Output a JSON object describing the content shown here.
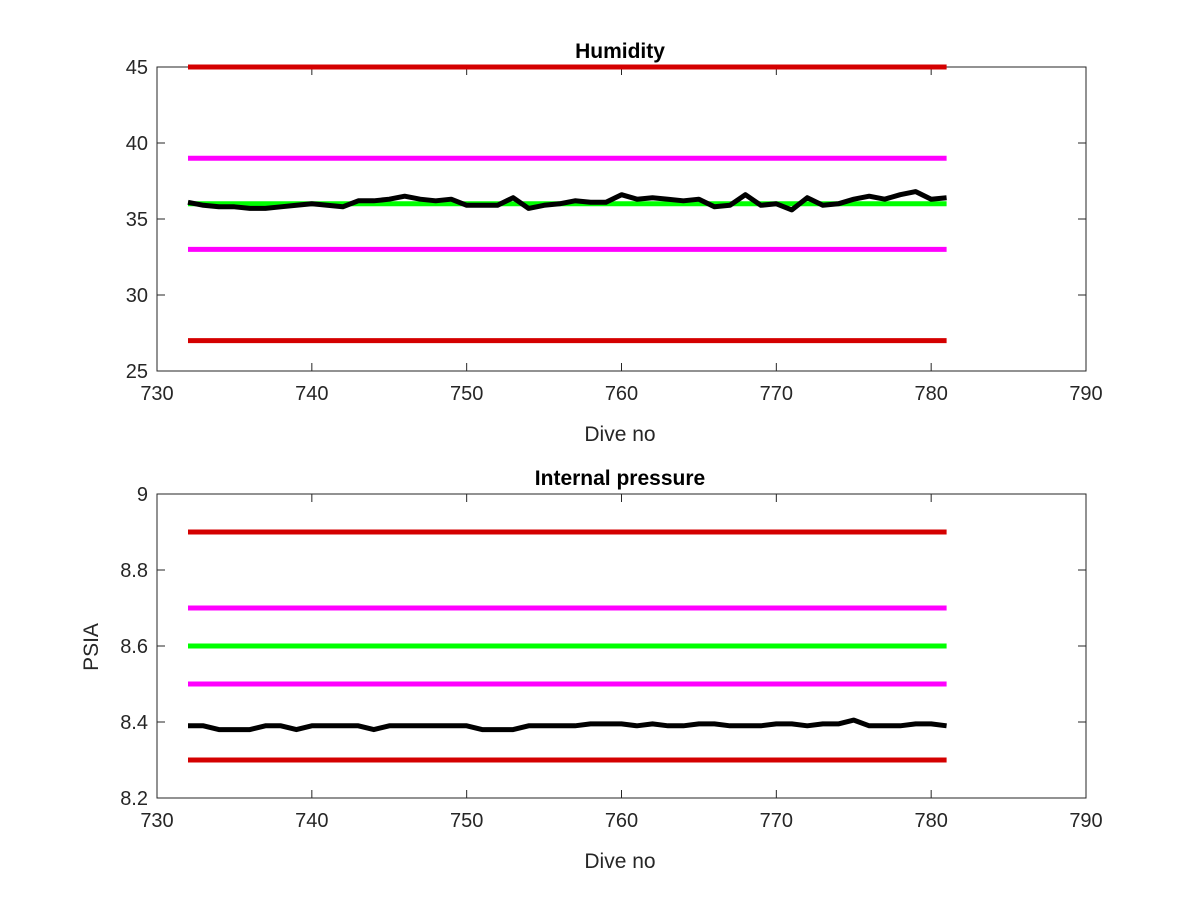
{
  "chart_data": [
    {
      "type": "line",
      "title": "Humidity",
      "xlabel": "Dive no",
      "ylabel": "",
      "xlim": [
        730,
        790
      ],
      "ylim": [
        25,
        45
      ],
      "xticks": [
        730,
        740,
        750,
        760,
        770,
        780,
        790
      ],
      "yticks": [
        25,
        30,
        35,
        40,
        45
      ],
      "xtick_labels": [
        "730",
        "740",
        "750",
        "760",
        "770",
        "780",
        "790"
      ],
      "ytick_labels": [
        "25",
        "30",
        "35",
        "40",
        "45"
      ],
      "grid": false,
      "series": [
        {
          "color": "#d40000",
          "x": [
            732,
            781
          ],
          "y": [
            45,
            45
          ]
        },
        {
          "color": "#ff00ff",
          "x": [
            732,
            781
          ],
          "y": [
            39,
            39
          ]
        },
        {
          "color": "#00ff00",
          "x": [
            732,
            781
          ],
          "y": [
            36,
            36
          ]
        },
        {
          "color": "#ff00ff",
          "x": [
            732,
            781
          ],
          "y": [
            33,
            33
          ]
        },
        {
          "color": "#d40000",
          "x": [
            732,
            781
          ],
          "y": [
            27,
            27
          ]
        },
        {
          "color": "#000000",
          "x": [
            732,
            733,
            734,
            735,
            736,
            737,
            738,
            739,
            740,
            741,
            742,
            743,
            744,
            745,
            746,
            747,
            748,
            749,
            750,
            751,
            752,
            753,
            754,
            755,
            756,
            757,
            758,
            759,
            760,
            761,
            762,
            763,
            764,
            765,
            766,
            767,
            768,
            769,
            770,
            771,
            772,
            773,
            774,
            775,
            776,
            777,
            778,
            779,
            780,
            781
          ],
          "y": [
            36.1,
            35.9,
            35.8,
            35.8,
            35.7,
            35.7,
            35.8,
            35.9,
            36.0,
            35.9,
            35.8,
            36.2,
            36.2,
            36.3,
            36.5,
            36.3,
            36.2,
            36.3,
            35.9,
            35.9,
            35.9,
            36.4,
            35.7,
            35.9,
            36.0,
            36.2,
            36.1,
            36.1,
            36.6,
            36.3,
            36.4,
            36.3,
            36.2,
            36.3,
            35.8,
            35.9,
            36.6,
            35.9,
            36.0,
            35.6,
            36.4,
            35.9,
            36.0,
            36.3,
            36.5,
            36.3,
            36.6,
            36.8,
            36.3,
            36.4
          ]
        }
      ]
    },
    {
      "type": "line",
      "title": "Internal pressure",
      "xlabel": "Dive no",
      "ylabel": "PSIA",
      "xlim": [
        730,
        790
      ],
      "ylim": [
        8.2,
        9
      ],
      "xticks": [
        730,
        740,
        750,
        760,
        770,
        780,
        790
      ],
      "yticks": [
        8.2,
        8.4,
        8.6,
        8.8,
        9
      ],
      "xtick_labels": [
        "730",
        "740",
        "750",
        "760",
        "770",
        "780",
        "790"
      ],
      "ytick_labels": [
        "8.2",
        "8.4",
        "8.6",
        "8.8",
        "9"
      ],
      "grid": false,
      "series": [
        {
          "color": "#d40000",
          "x": [
            732,
            781
          ],
          "y": [
            8.9,
            8.9
          ]
        },
        {
          "color": "#ff00ff",
          "x": [
            732,
            781
          ],
          "y": [
            8.7,
            8.7
          ]
        },
        {
          "color": "#00ff00",
          "x": [
            732,
            781
          ],
          "y": [
            8.6,
            8.6
          ]
        },
        {
          "color": "#ff00ff",
          "x": [
            732,
            781
          ],
          "y": [
            8.5,
            8.5
          ]
        },
        {
          "color": "#d40000",
          "x": [
            732,
            781
          ],
          "y": [
            8.3,
            8.3
          ]
        },
        {
          "color": "#000000",
          "x": [
            732,
            733,
            734,
            735,
            736,
            737,
            738,
            739,
            740,
            741,
            742,
            743,
            744,
            745,
            746,
            747,
            748,
            749,
            750,
            751,
            752,
            753,
            754,
            755,
            756,
            757,
            758,
            759,
            760,
            761,
            762,
            763,
            764,
            765,
            766,
            767,
            768,
            769,
            770,
            771,
            772,
            773,
            774,
            775,
            776,
            777,
            778,
            779,
            780,
            781
          ],
          "y": [
            8.39,
            8.39,
            8.38,
            8.38,
            8.38,
            8.39,
            8.39,
            8.38,
            8.39,
            8.39,
            8.39,
            8.39,
            8.38,
            8.39,
            8.39,
            8.39,
            8.39,
            8.39,
            8.39,
            8.38,
            8.38,
            8.38,
            8.39,
            8.39,
            8.39,
            8.39,
            8.395,
            8.395,
            8.395,
            8.39,
            8.395,
            8.39,
            8.39,
            8.395,
            8.395,
            8.39,
            8.39,
            8.39,
            8.395,
            8.395,
            8.39,
            8.395,
            8.395,
            8.405,
            8.39,
            8.39,
            8.39,
            8.395,
            8.395,
            8.39
          ]
        }
      ]
    }
  ]
}
